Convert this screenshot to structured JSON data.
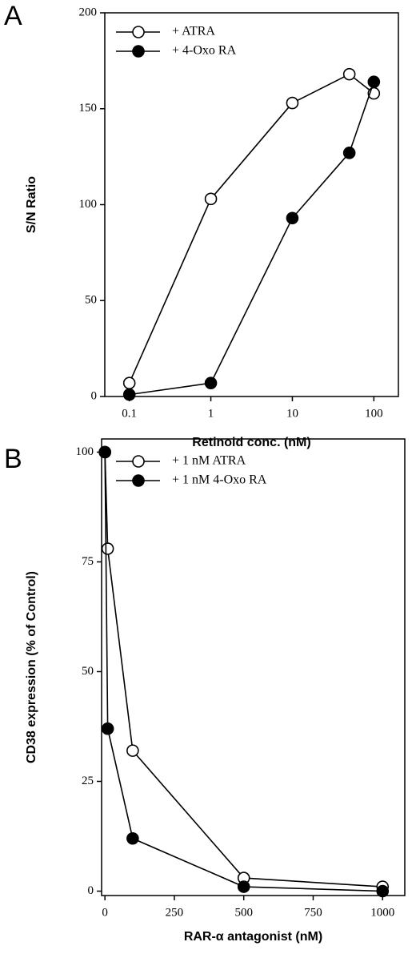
{
  "chart_data": [
    {
      "type": "line",
      "panel_label": "A",
      "xlabel": "Retinoid conc. (nM)",
      "ylabel": "S/N Ratio",
      "xscale": "log",
      "xlim": [
        0.05,
        200
      ],
      "xticks": [
        0.1,
        1,
        10,
        100
      ],
      "ylim": [
        0,
        200
      ],
      "yticks": [
        0,
        50,
        100,
        150,
        200
      ],
      "grid": false,
      "legend": "top-left",
      "series": [
        {
          "name": "+ ATRA",
          "color": "#000000",
          "marker": "open",
          "x": [
            0.1,
            1,
            10,
            50,
            100
          ],
          "values": [
            7,
            103,
            153,
            168,
            158
          ]
        },
        {
          "name": "+ 4-Oxo RA",
          "color": "#000000",
          "marker": "filled",
          "x": [
            0.1,
            1,
            10,
            50,
            100
          ],
          "values": [
            1,
            7,
            93,
            127,
            164
          ]
        }
      ]
    },
    {
      "type": "line",
      "panel_label": "B",
      "xlabel": "RAR-α antagonist (nM)",
      "ylabel": "CD38 expression (% of Control)",
      "xscale": "linear",
      "xlim": [
        -12,
        1080
      ],
      "xticks": [
        0,
        250,
        500,
        750,
        1000
      ],
      "ylim": [
        -1,
        103
      ],
      "yticks": [
        0,
        25,
        50,
        75,
        100
      ],
      "grid": false,
      "legend": "top-left",
      "series": [
        {
          "name": "+ 1 nM ATRA",
          "color": "#000000",
          "marker": "open",
          "x": [
            0,
            10,
            100,
            500,
            1000
          ],
          "values": [
            100,
            78,
            32,
            3,
            1
          ]
        },
        {
          "name": "+ 1 nM 4-Oxo RA",
          "color": "#000000",
          "marker": "filled",
          "x": [
            0,
            10,
            100,
            500,
            1000
          ],
          "values": [
            100,
            37,
            12,
            1,
            0
          ]
        }
      ]
    }
  ]
}
